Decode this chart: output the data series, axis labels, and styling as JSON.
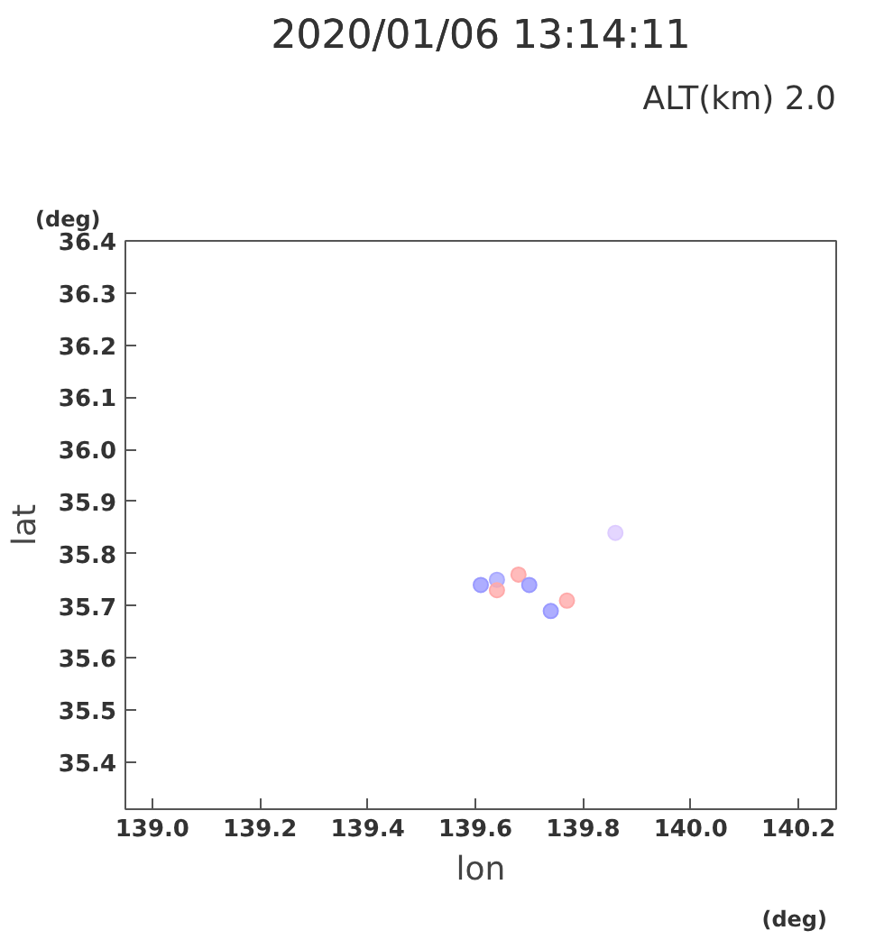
{
  "chart_data": {
    "type": "scatter",
    "title": "2020/01/06 13:14:11",
    "xlabel": "lon",
    "ylabel": "lat",
    "annotations": [
      "ALT(km) 2.0",
      "(deg)",
      "(deg)"
    ],
    "x": [
      139.61,
      139.64,
      139.68,
      139.7,
      139.64,
      139.77,
      139.74,
      139.86
    ],
    "values": [
      35.74,
      35.75,
      35.76,
      35.74,
      35.73,
      35.71,
      35.69,
      35.84
    ],
    "colors": [
      "#9999ff",
      "#aaaaff",
      "#ffaaaa",
      "#9999ff",
      "#ffaaaa",
      "#ffaaaa",
      "#9999ff",
      "#ddccff"
    ],
    "marker": "circle",
    "xlim": [
      138.95,
      140.27
    ],
    "ylim": [
      35.31,
      36.4
    ],
    "xticks": [
      {
        "value": 139.0,
        "label": "139.0"
      },
      139.2,
      139.4,
      139.6,
      139.8,
      {
        "value": 140.0,
        "label": "140.0"
      },
      140.2
    ],
    "yticks": [
      35.4,
      35.5,
      35.6,
      35.7,
      35.8,
      35.9,
      {
        "value": 36.0,
        "label": "36.0"
      },
      36.1,
      36.2,
      36.3,
      36.4
    ],
    "grid": false
  }
}
